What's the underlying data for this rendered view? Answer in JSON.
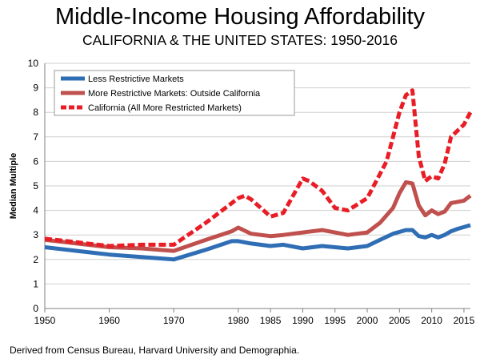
{
  "chart_data": {
    "type": "line",
    "title": "Middle-Income Housing Affordability",
    "subtitle": "CALIFORNIA & THE UNITED STATES: 1950-2016",
    "xlabel": "",
    "ylabel": "Median Multiple",
    "xlim": [
      1950,
      2016
    ],
    "ylim": [
      0,
      10
    ],
    "x_ticks": [
      1950,
      1960,
      1970,
      1980,
      1985,
      1990,
      1995,
      2000,
      2005,
      2010,
      2015
    ],
    "y_ticks": [
      0,
      1,
      2,
      3,
      4,
      5,
      6,
      7,
      8,
      9,
      10
    ],
    "legend_position": "top-left",
    "series": [
      {
        "name": "Less Restrictive Markets",
        "color": "#2F6DB5",
        "style": "solid",
        "x": [
          1950,
          1955,
          1960,
          1965,
          1970,
          1975,
          1979,
          1980,
          1982,
          1985,
          1987,
          1990,
          1993,
          1995,
          1997,
          2000,
          2002,
          2004,
          2006,
          2007,
          2008,
          2009,
          2010,
          2011,
          2012,
          2013,
          2014,
          2016
        ],
        "y": [
          2.5,
          2.35,
          2.2,
          2.1,
          2.0,
          2.4,
          2.75,
          2.75,
          2.65,
          2.55,
          2.6,
          2.45,
          2.55,
          2.5,
          2.45,
          2.55,
          2.8,
          3.05,
          3.2,
          3.2,
          2.95,
          2.9,
          3.0,
          2.9,
          3.0,
          3.15,
          3.25,
          3.4
        ]
      },
      {
        "name": "More Restrictive Markets: Outside California",
        "color": "#C0504D",
        "style": "solid",
        "x": [
          1950,
          1955,
          1960,
          1965,
          1970,
          1975,
          1979,
          1980,
          1982,
          1985,
          1987,
          1990,
          1993,
          1995,
          1997,
          2000,
          2002,
          2004,
          2005,
          2006,
          2007,
          2008,
          2009,
          2010,
          2011,
          2012,
          2013,
          2014,
          2015,
          2016
        ],
        "y": [
          2.8,
          2.65,
          2.5,
          2.45,
          2.35,
          2.8,
          3.15,
          3.3,
          3.05,
          2.95,
          3.0,
          3.1,
          3.2,
          3.1,
          3.0,
          3.1,
          3.5,
          4.1,
          4.7,
          5.15,
          5.1,
          4.2,
          3.8,
          4.0,
          3.85,
          3.95,
          4.3,
          4.35,
          4.4,
          4.6
        ]
      },
      {
        "name": "California (All More Restricted Markets)",
        "color": "#E81D25",
        "style": "dashed",
        "x": [
          1950,
          1955,
          1960,
          1965,
          1970,
          1975,
          1979,
          1980,
          1981,
          1982,
          1985,
          1987,
          1990,
          1991,
          1993,
          1995,
          1997,
          2000,
          2002,
          2003,
          2004,
          2005,
          2006,
          2007,
          2008,
          2009,
          2010,
          2011,
          2012,
          2013,
          2015,
          2016
        ],
        "y": [
          2.85,
          2.7,
          2.55,
          2.6,
          2.6,
          3.5,
          4.3,
          4.5,
          4.6,
          4.45,
          3.75,
          3.9,
          5.3,
          5.2,
          4.8,
          4.1,
          4.0,
          4.5,
          5.5,
          6.0,
          7.0,
          8.0,
          8.7,
          8.9,
          6.2,
          5.2,
          5.4,
          5.3,
          5.9,
          7.0,
          7.5,
          8.0
        ]
      }
    ]
  },
  "source_note": "Derived from Census Bureau, Harvard University and Demographia."
}
